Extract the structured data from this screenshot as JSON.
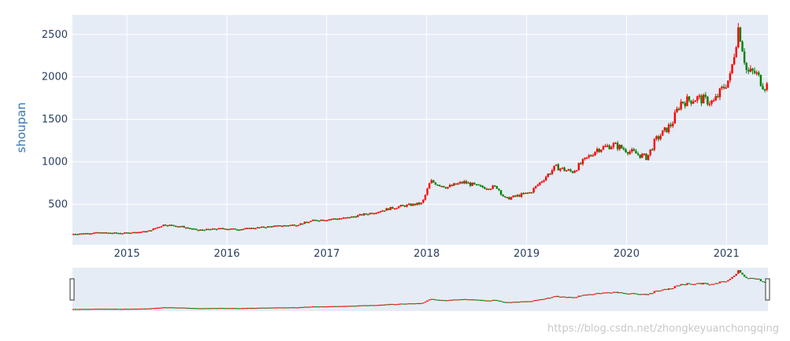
{
  "chart_data": {
    "type": "candlestick",
    "ylabel": "shoupan",
    "xlabel": "",
    "title": "",
    "x_ticks": [
      "2015",
      "2016",
      "2017",
      "2018",
      "2019",
      "2020",
      "2021"
    ],
    "y_ticks": [
      500,
      1000,
      1500,
      2000,
      2500
    ],
    "xlim": [
      "2014-06-15",
      "2021-05-31"
    ],
    "ylim": [
      20,
      2730
    ],
    "rangeslider": true,
    "colors": {
      "increasing": "#ff0000",
      "decreasing": "#008000",
      "plot_bg": "#e5ecf6",
      "grid": "#ffffff"
    },
    "series": [
      {
        "name": "",
        "points": [
          {
            "x": "2014-06",
            "y": 150
          },
          {
            "x": "2014-09",
            "y": 165
          },
          {
            "x": "2014-12",
            "y": 160
          },
          {
            "x": "2015-03",
            "y": 180
          },
          {
            "x": "2015-05",
            "y": 260
          },
          {
            "x": "2015-07",
            "y": 240
          },
          {
            "x": "2015-09",
            "y": 195
          },
          {
            "x": "2015-12",
            "y": 215
          },
          {
            "x": "2016-02",
            "y": 205
          },
          {
            "x": "2016-06",
            "y": 240
          },
          {
            "x": "2016-09",
            "y": 260
          },
          {
            "x": "2016-11",
            "y": 310
          },
          {
            "x": "2017-03",
            "y": 340
          },
          {
            "x": "2017-06",
            "y": 400
          },
          {
            "x": "2017-09",
            "y": 470
          },
          {
            "x": "2017-12",
            "y": 510
          },
          {
            "x": "2018-01",
            "y": 770
          },
          {
            "x": "2018-03",
            "y": 700
          },
          {
            "x": "2018-05",
            "y": 760
          },
          {
            "x": "2018-07",
            "y": 700
          },
          {
            "x": "2018-09",
            "y": 700
          },
          {
            "x": "2018-10",
            "y": 560
          },
          {
            "x": "2019-01",
            "y": 640
          },
          {
            "x": "2019-04",
            "y": 940
          },
          {
            "x": "2019-06",
            "y": 880
          },
          {
            "x": "2019-09",
            "y": 1150
          },
          {
            "x": "2019-11",
            "y": 1200
          },
          {
            "x": "2020-01",
            "y": 1120
          },
          {
            "x": "2020-03",
            "y": 1050
          },
          {
            "x": "2020-04",
            "y": 1250
          },
          {
            "x": "2020-06",
            "y": 1450
          },
          {
            "x": "2020-07",
            "y": 1700
          },
          {
            "x": "2020-09",
            "y": 1750
          },
          {
            "x": "2020-11",
            "y": 1700
          },
          {
            "x": "2021-01",
            "y": 2000
          },
          {
            "x": "2021-02",
            "y": 2600
          },
          {
            "x": "2021-03",
            "y": 2050
          },
          {
            "x": "2021-04",
            "y": 2050
          },
          {
            "x": "2021-05",
            "y": 1900
          }
        ]
      }
    ]
  },
  "watermark": "https://blog.csdn.net/zhongkeyuanchongqing"
}
